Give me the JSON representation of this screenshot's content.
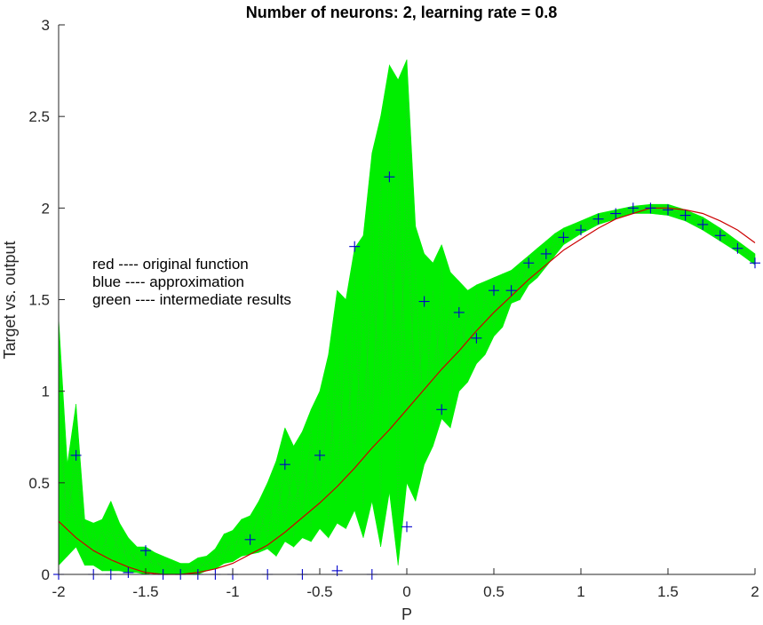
{
  "chart_data": {
    "type": "line",
    "title": "Number of neurons: 2, learning rate = 0.8",
    "xlabel": "P",
    "ylabel": "Target vs. output",
    "xlim": [
      -2,
      2
    ],
    "ylim": [
      0,
      3
    ],
    "x_ticks": [
      "-2",
      "-1.5",
      "-1",
      "-0.5",
      "0",
      "0.5",
      "1",
      "1.5",
      "2"
    ],
    "y_ticks": [
      "0",
      "0.5",
      "1",
      "1.5",
      "2",
      "2.5",
      "3"
    ],
    "grid": false,
    "legend_text": [
      "red ---- original function",
      "blue ---- approximation",
      "green ---- intermediate results"
    ],
    "colors": {
      "original": "#cc0000",
      "approximation": "#0000cc",
      "intermediate": "#00ee00",
      "axis": "#262626"
    },
    "series": [
      {
        "name": "original function",
        "x": [
          -2.0,
          -1.9,
          -1.8,
          -1.7,
          -1.6,
          -1.5,
          -1.4,
          -1.3,
          -1.2,
          -1.1,
          -1.0,
          -0.9,
          -0.8,
          -0.7,
          -0.6,
          -0.5,
          -0.4,
          -0.3,
          -0.2,
          -0.1,
          0.0,
          0.1,
          0.2,
          0.3,
          0.4,
          0.5,
          0.6,
          0.7,
          0.8,
          0.9,
          1.0,
          1.1,
          1.2,
          1.3,
          1.4,
          1.5,
          1.6,
          1.7,
          1.8,
          1.9,
          2.0
        ],
        "y": [
          0.29,
          0.2,
          0.13,
          0.08,
          0.04,
          0.01,
          0.0,
          0.0,
          0.01,
          0.03,
          0.06,
          0.11,
          0.16,
          0.23,
          0.31,
          0.39,
          0.48,
          0.58,
          0.69,
          0.79,
          0.9,
          1.01,
          1.12,
          1.22,
          1.33,
          1.43,
          1.52,
          1.61,
          1.69,
          1.77,
          1.83,
          1.89,
          1.94,
          1.97,
          2.0,
          2.0,
          1.99,
          1.97,
          1.93,
          1.88,
          1.81
        ]
      },
      {
        "name": "approximation",
        "x": [
          -2.0,
          -1.9,
          -1.8,
          -1.7,
          -1.6,
          -1.5,
          -1.4,
          -1.3,
          -1.2,
          -1.1,
          -1.0,
          -0.9,
          -0.8,
          -0.7,
          -0.6,
          -0.5,
          -0.4,
          -0.3,
          -0.2,
          -0.1,
          0.0,
          0.1,
          0.2,
          0.3,
          0.4,
          0.5,
          0.6,
          0.7,
          0.8,
          0.9,
          1.0,
          1.1,
          1.2,
          1.3,
          1.4,
          1.5,
          1.6,
          1.7,
          1.8,
          1.9,
          2.0
        ],
        "y": [
          0.0,
          0.65,
          0.0,
          0.0,
          0.01,
          0.13,
          0.0,
          0.0,
          0.0,
          0.0,
          0.0,
          0.19,
          0.0,
          0.6,
          0.0,
          0.65,
          0.02,
          1.79,
          0.0,
          2.17,
          0.26,
          1.49,
          0.9,
          1.43,
          1.29,
          1.55,
          1.55,
          1.7,
          1.75,
          1.84,
          1.88,
          1.94,
          1.97,
          2.0,
          2.0,
          1.99,
          1.96,
          1.91,
          1.85,
          1.78,
          1.7
        ]
      }
    ],
    "intermediate_envelope": {
      "x": [
        -2.0,
        -1.95,
        -1.9,
        -1.85,
        -1.8,
        -1.75,
        -1.7,
        -1.65,
        -1.6,
        -1.55,
        -1.5,
        -1.45,
        -1.4,
        -1.35,
        -1.3,
        -1.25,
        -1.2,
        -1.15,
        -1.1,
        -1.05,
        -1.0,
        -0.95,
        -0.9,
        -0.85,
        -0.8,
        -0.75,
        -0.7,
        -0.65,
        -0.6,
        -0.55,
        -0.5,
        -0.45,
        -0.4,
        -0.35,
        -0.3,
        -0.25,
        -0.2,
        -0.15,
        -0.1,
        -0.05,
        0.0,
        0.05,
        0.1,
        0.15,
        0.2,
        0.25,
        0.3,
        0.35,
        0.4,
        0.45,
        0.5,
        0.55,
        0.6,
        0.65,
        0.7,
        0.75,
        0.8,
        0.85,
        0.9,
        0.95,
        1.0,
        1.1,
        1.2,
        1.3,
        1.4,
        1.5,
        1.6,
        1.7,
        1.8,
        1.9,
        2.0
      ],
      "lower": [
        0.05,
        0.1,
        0.15,
        0.05,
        0.05,
        0.02,
        0.02,
        0.02,
        0.01,
        0.01,
        0.0,
        0.01,
        0.0,
        0.0,
        0.0,
        0.0,
        0.0,
        0.02,
        0.03,
        0.06,
        0.07,
        0.1,
        0.11,
        0.12,
        0.14,
        0.1,
        0.18,
        0.15,
        0.2,
        0.18,
        0.25,
        0.2,
        0.28,
        0.25,
        0.35,
        0.2,
        0.4,
        0.15,
        0.45,
        0.05,
        0.5,
        0.4,
        0.6,
        0.7,
        0.85,
        0.8,
        1.0,
        1.05,
        1.15,
        1.2,
        1.3,
        1.35,
        1.48,
        1.5,
        1.58,
        1.62,
        1.68,
        1.74,
        1.8,
        1.83,
        1.86,
        1.91,
        1.94,
        1.97,
        1.97,
        1.96,
        1.93,
        1.88,
        1.82,
        1.76,
        1.69
      ],
      "upper": [
        1.4,
        0.6,
        0.93,
        0.3,
        0.28,
        0.3,
        0.4,
        0.28,
        0.2,
        0.15,
        0.15,
        0.12,
        0.1,
        0.08,
        0.06,
        0.06,
        0.09,
        0.1,
        0.14,
        0.22,
        0.24,
        0.3,
        0.32,
        0.4,
        0.5,
        0.62,
        0.8,
        0.7,
        0.78,
        0.9,
        1.0,
        1.2,
        1.55,
        1.5,
        1.78,
        1.85,
        2.3,
        2.5,
        2.78,
        2.7,
        2.81,
        1.9,
        1.75,
        1.7,
        1.8,
        1.65,
        1.6,
        1.55,
        1.58,
        1.6,
        1.62,
        1.64,
        1.66,
        1.7,
        1.74,
        1.78,
        1.82,
        1.86,
        1.89,
        1.91,
        1.93,
        1.97,
        1.99,
        2.01,
        2.02,
        2.02,
        1.99,
        1.95,
        1.89,
        1.82,
        1.75
      ]
    }
  }
}
